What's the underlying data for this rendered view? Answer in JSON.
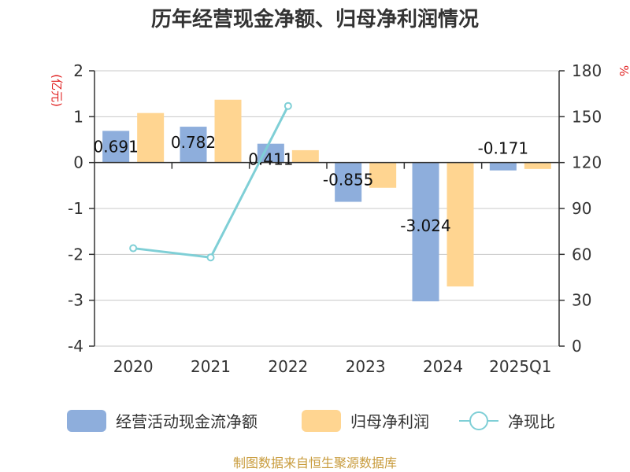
{
  "title": "历年经营现金净额、归母净利润情况",
  "left_unit": "(亿元)",
  "right_unit": "%",
  "source": "制图数据来自恒生聚源数据库",
  "colors": {
    "ocf": "#8eaedc",
    "np": "#ffd591",
    "ratio": "#7fcfd6"
  },
  "chart_data": {
    "type": "bar",
    "categories": [
      "2020",
      "2021",
      "2022",
      "2023",
      "2024",
      "2025Q1"
    ],
    "series": [
      {
        "name": "经营活动现金流净额",
        "type": "bar",
        "axis": "left",
        "values": [
          0.691,
          0.782,
          0.411,
          -0.855,
          -3.024,
          -0.171
        ],
        "labels": [
          "0.691",
          "0.782",
          "0.411",
          "-0.855",
          "-3.024",
          "-0.171"
        ]
      },
      {
        "name": "归母净利润",
        "type": "bar",
        "axis": "left",
        "values": [
          1.08,
          1.37,
          0.27,
          -0.55,
          -2.7,
          -0.14
        ]
      },
      {
        "name": "净现比",
        "type": "line",
        "axis": "right",
        "values": [
          64,
          58,
          157,
          null,
          null,
          null
        ]
      }
    ],
    "left_axis": {
      "ylim": [
        -4,
        2
      ],
      "ticks": [
        "2",
        "1",
        "0",
        "-1",
        "-2",
        "-3",
        "-4"
      ]
    },
    "right_axis": {
      "ylim": [
        0,
        180
      ],
      "ticks": [
        "180",
        "150",
        "120",
        "90",
        "60",
        "30",
        "0"
      ]
    },
    "grid": true,
    "legend": "bottom"
  }
}
